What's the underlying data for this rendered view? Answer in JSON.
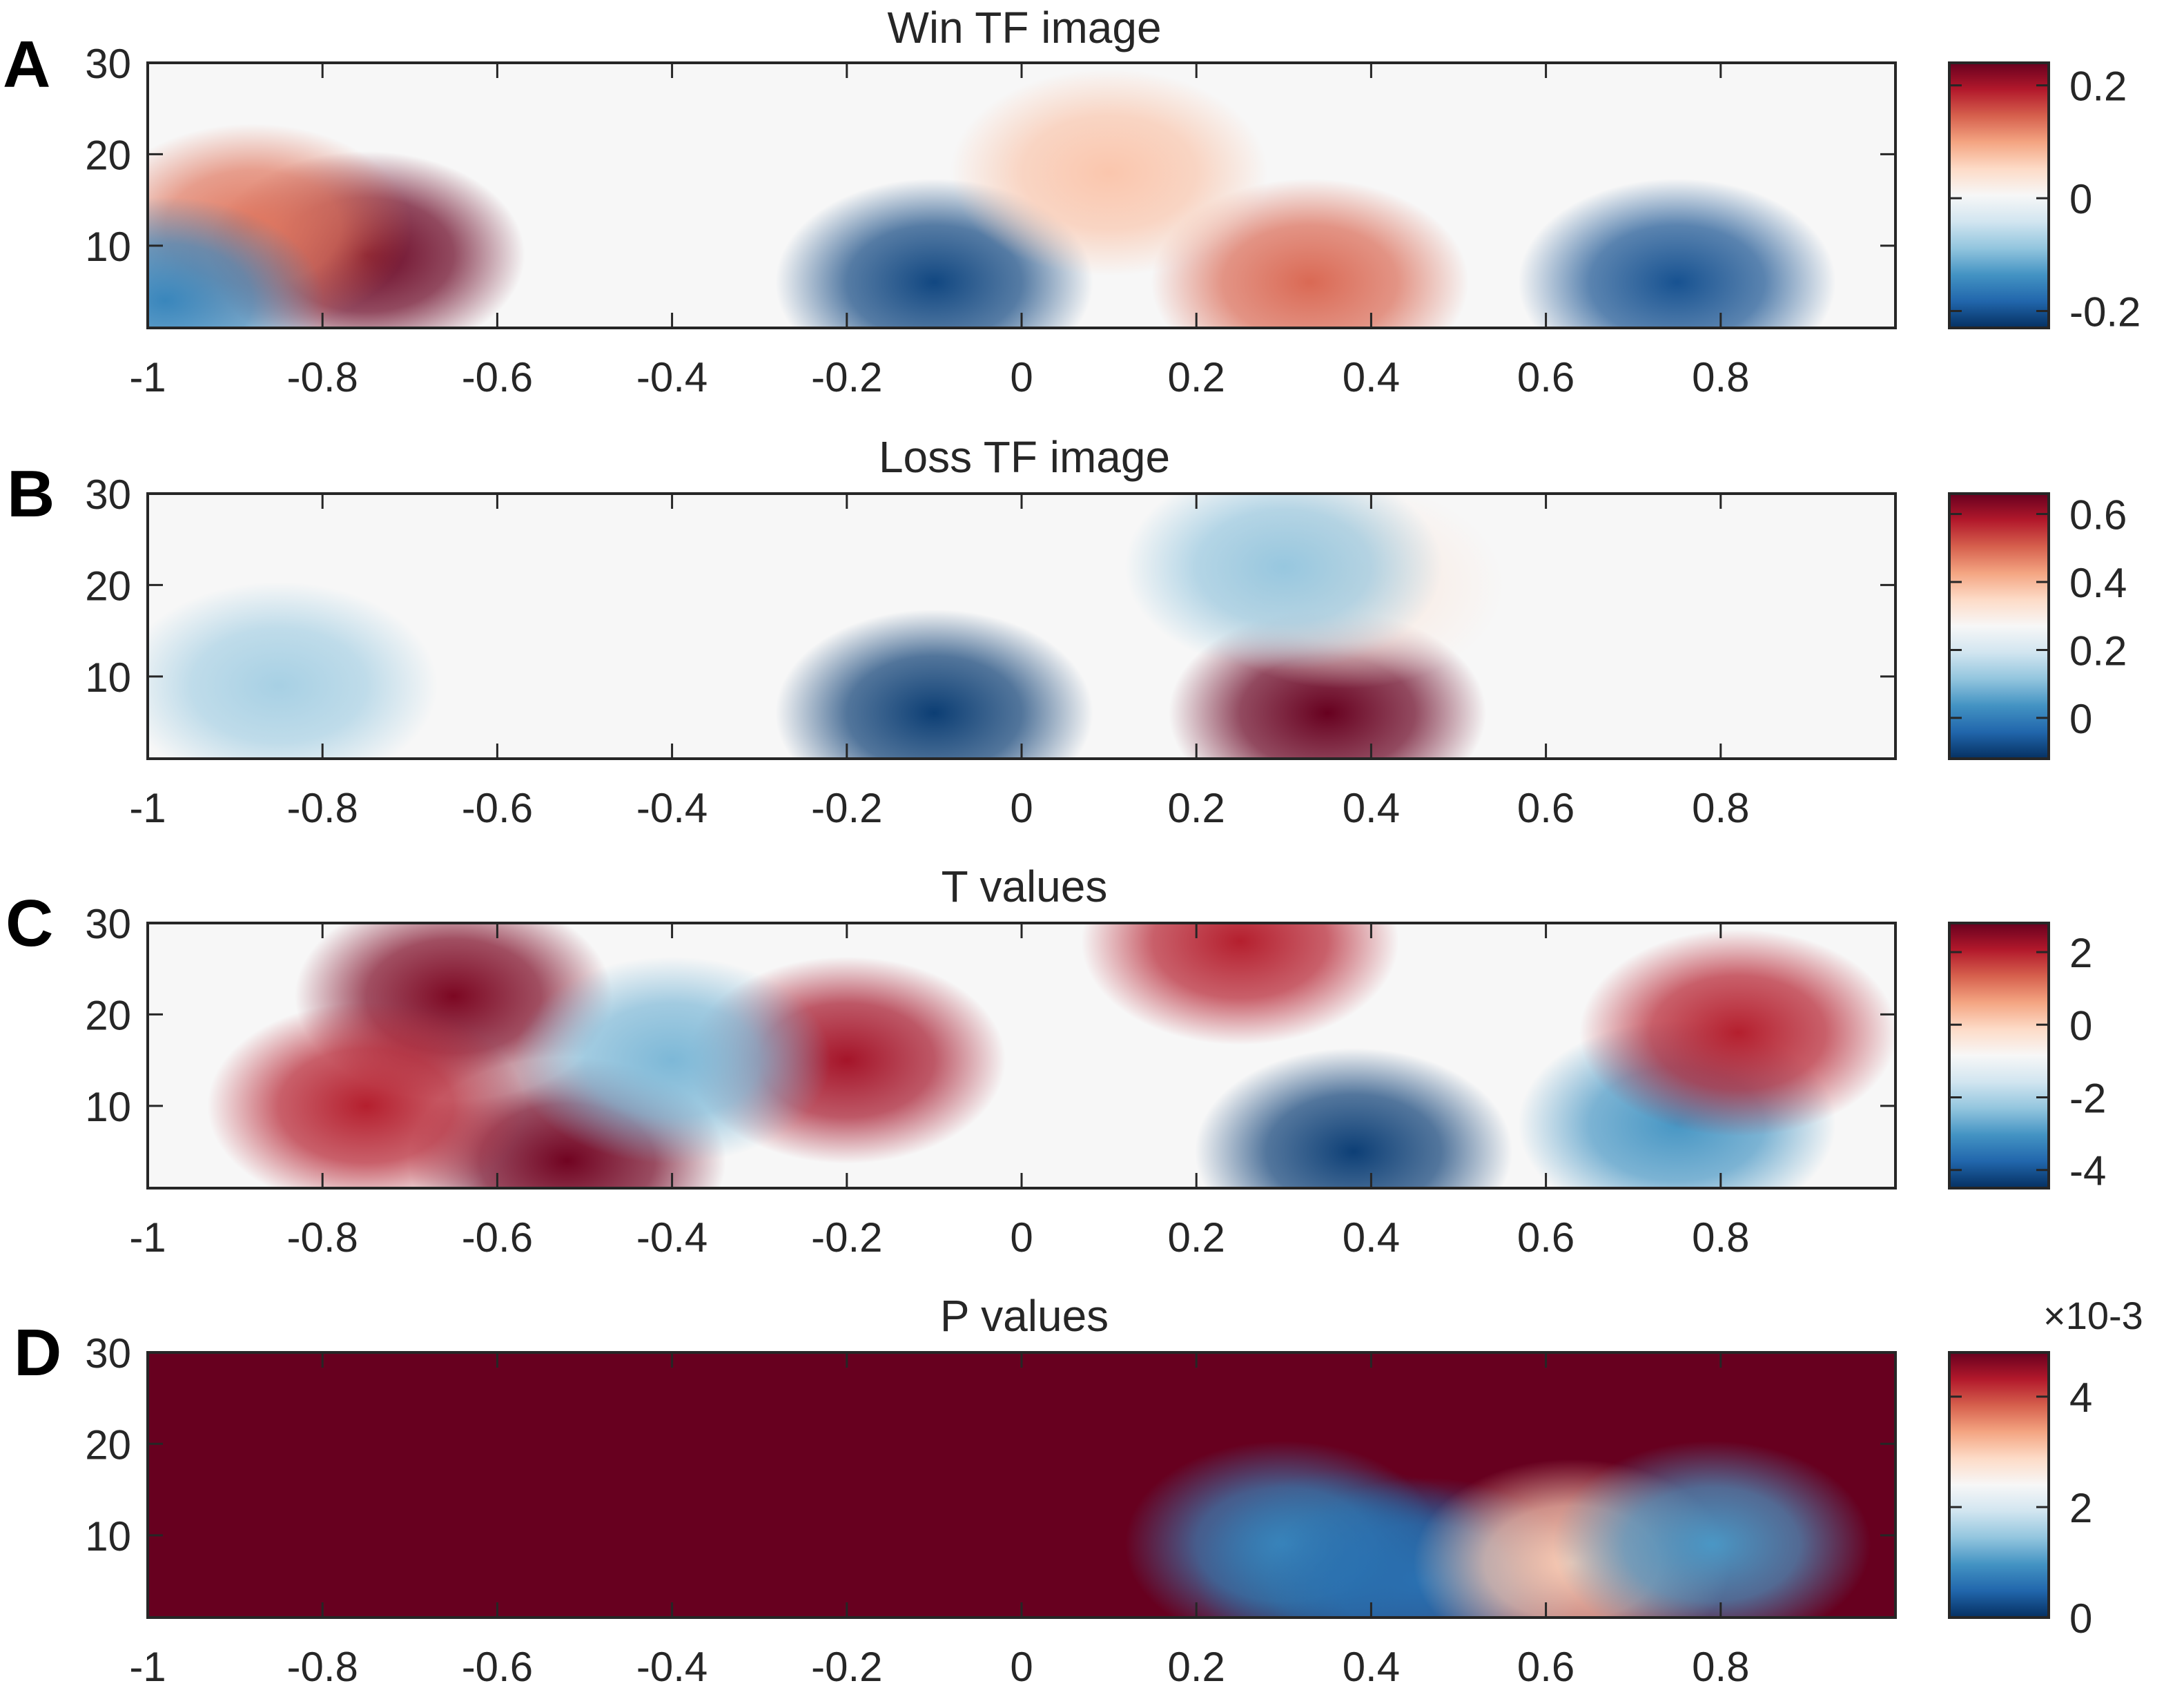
{
  "chart_data": [
    {
      "type": "heatmap",
      "panel_label": "A",
      "title": "Win TF image",
      "x_ticks": [
        "-1",
        "-0.8",
        "-0.6",
        "-0.4",
        "-0.2",
        "0",
        "0.2",
        "0.4",
        "0.6",
        "0.8"
      ],
      "y_ticks": [
        "10",
        "20",
        "30"
      ],
      "xlim": [
        -1,
        1
      ],
      "ylim": [
        1,
        30
      ],
      "colorbar": {
        "ticks": [
          "-0.2",
          "0",
          "0.2"
        ],
        "tick_values": [
          -0.2,
          0,
          0.2
        ],
        "range": [
          -0.23,
          0.24
        ],
        "exponent": ""
      },
      "colormap": "RdBu",
      "features": [
        {
          "x": -0.75,
          "y": 9,
          "value": 0.24
        },
        {
          "x": -0.88,
          "y": 12,
          "value": 0.13
        },
        {
          "x": -0.1,
          "y": 6,
          "value": -0.21
        },
        {
          "x": 0.75,
          "y": 6,
          "value": -0.2
        },
        {
          "x": 0.33,
          "y": 6,
          "value": 0.14
        },
        {
          "x": 0.1,
          "y": 18,
          "value": 0.07
        },
        {
          "x": -0.98,
          "y": 4,
          "value": -0.15
        }
      ]
    },
    {
      "type": "heatmap",
      "panel_label": "B",
      "title": "Loss TF image",
      "x_ticks": [
        "-1",
        "-0.8",
        "-0.6",
        "-0.4",
        "-0.2",
        "0",
        "0.2",
        "0.4",
        "0.6",
        "0.8"
      ],
      "y_ticks": [
        "10",
        "20",
        "30"
      ],
      "xlim": [
        -1,
        1
      ],
      "ylim": [
        1,
        30
      ],
      "colorbar": {
        "ticks": [
          "0",
          "0.2",
          "0.4",
          "0.6"
        ],
        "tick_values": [
          0,
          0.2,
          0.4,
          0.6
        ],
        "range": [
          -0.12,
          0.66
        ],
        "exponent": ""
      },
      "colormap": "RdBu",
      "features": [
        {
          "x": 0.35,
          "y": 6,
          "value": 0.66
        },
        {
          "x": 0.37,
          "y": 20,
          "value": 0.3
        },
        {
          "x": -0.1,
          "y": 6,
          "value": -0.1
        },
        {
          "x": -0.85,
          "y": 9,
          "value": 0.14
        },
        {
          "x": 0.3,
          "y": 22,
          "value": 0.12
        }
      ]
    },
    {
      "type": "heatmap",
      "panel_label": "C",
      "title": "T values",
      "x_ticks": [
        "-1",
        "-0.8",
        "-0.6",
        "-0.4",
        "-0.2",
        "0",
        "0.2",
        "0.4",
        "0.6",
        "0.8"
      ],
      "y_ticks": [
        "10",
        "20",
        "30"
      ],
      "xlim": [
        -1,
        1
      ],
      "ylim": [
        1,
        30
      ],
      "colorbar": {
        "ticks": [
          "-4",
          "-2",
          "0",
          "2"
        ],
        "tick_values": [
          -4,
          -2,
          0,
          2
        ],
        "range": [
          -4.5,
          2.8
        ],
        "exponent": ""
      },
      "colormap": "RdBu",
      "features": [
        {
          "x": -0.65,
          "y": 22,
          "value": 2.6
        },
        {
          "x": -0.52,
          "y": 4,
          "value": 2.7
        },
        {
          "x": -0.75,
          "y": 10,
          "value": 2.0
        },
        {
          "x": 0.38,
          "y": 5,
          "value": -4.3
        },
        {
          "x": 0.75,
          "y": 8,
          "value": -3.0
        },
        {
          "x": 0.25,
          "y": 28,
          "value": 2.0
        },
        {
          "x": -0.2,
          "y": 15,
          "value": 2.2
        },
        {
          "x": -0.4,
          "y": 15,
          "value": -2.5
        },
        {
          "x": 0.82,
          "y": 18,
          "value": 2.0
        }
      ]
    },
    {
      "type": "heatmap",
      "panel_label": "D",
      "title": "P values",
      "x_ticks": [
        "-1",
        "-0.8",
        "-0.6",
        "-0.4",
        "-0.2",
        "0",
        "0.2",
        "0.4",
        "0.6",
        "0.8"
      ],
      "y_ticks": [
        "10",
        "20",
        "30"
      ],
      "xlim": [
        -1,
        1
      ],
      "ylim": [
        1,
        30
      ],
      "colorbar": {
        "ticks": [
          "0",
          "2",
          "4"
        ],
        "tick_values": [
          0,
          2,
          4
        ],
        "range": [
          0,
          4.8
        ],
        "exponent": "×10-3"
      },
      "colormap": "RdBu",
      "baseline_value": 4.8,
      "features": [
        {
          "x": 0.38,
          "y": 6,
          "value": 0.2
        },
        {
          "x": 0.3,
          "y": 9,
          "value": 0.8
        },
        {
          "x": 0.46,
          "y": 5,
          "value": 0.6
        },
        {
          "x": 0.63,
          "y": 7,
          "value": 3.0
        },
        {
          "x": 0.79,
          "y": 9,
          "value": 1.0
        }
      ]
    }
  ]
}
